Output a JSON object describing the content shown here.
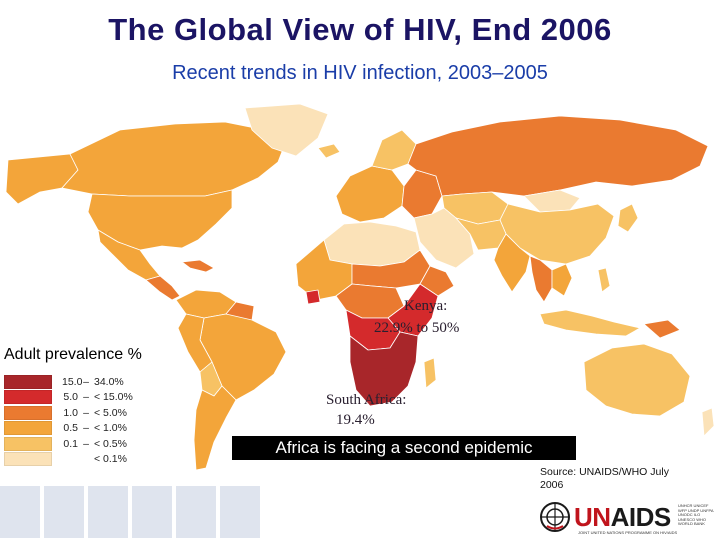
{
  "title": "The Global View of HIV, End 2006",
  "subtitle": "Recent trends in HIV infection, 2003–2005",
  "legend": {
    "title": "Adult prevalence %",
    "items": [
      {
        "low": "15.0",
        "sep": "–",
        "high": "34.0%",
        "color": "#a8262a"
      },
      {
        "low": "5.0",
        "sep": "–",
        "high": "< 15.0%",
        "color": "#d42a2c"
      },
      {
        "low": "1.0",
        "sep": "–",
        "high": "< 5.0%",
        "color": "#ea7a30"
      },
      {
        "low": "0.5",
        "sep": "–",
        "high": "< 1.0%",
        "color": "#f3a53a"
      },
      {
        "low": "0.1",
        "sep": "–",
        "high": "< 0.5%",
        "color": "#f7c264"
      },
      {
        "low": "",
        "sep": "",
        "high": "< 0.1%",
        "color": "#fbe2b8"
      }
    ]
  },
  "annotations": {
    "kenya_line1": "Kenya:",
    "kenya_line2": "22.9% to 50%",
    "sa_line1": "South Africa:",
    "sa_line2": "19.4%"
  },
  "banner": "Africa is facing a second epidemic",
  "source": "Source: UNAIDS/WHO July 2006",
  "logo": {
    "text_red": "UN",
    "text_dark": "AIDS",
    "partners": "UNHCR UNICEF WFP UNDP UNFPA UNODC ILO UNESCO WHO WORLD BANK",
    "tagline": "JOINT UNITED NATIONS PROGRAMME ON HIV/AIDS"
  },
  "colors": {
    "ocean": "#ffffff",
    "border": "#ffffff",
    "very_low": "#fbe2b8",
    "low": "#f7c264",
    "medium_low": "#f3a53a",
    "medium": "#ea7a30",
    "high": "#d42a2c",
    "very_high": "#a8262a"
  }
}
